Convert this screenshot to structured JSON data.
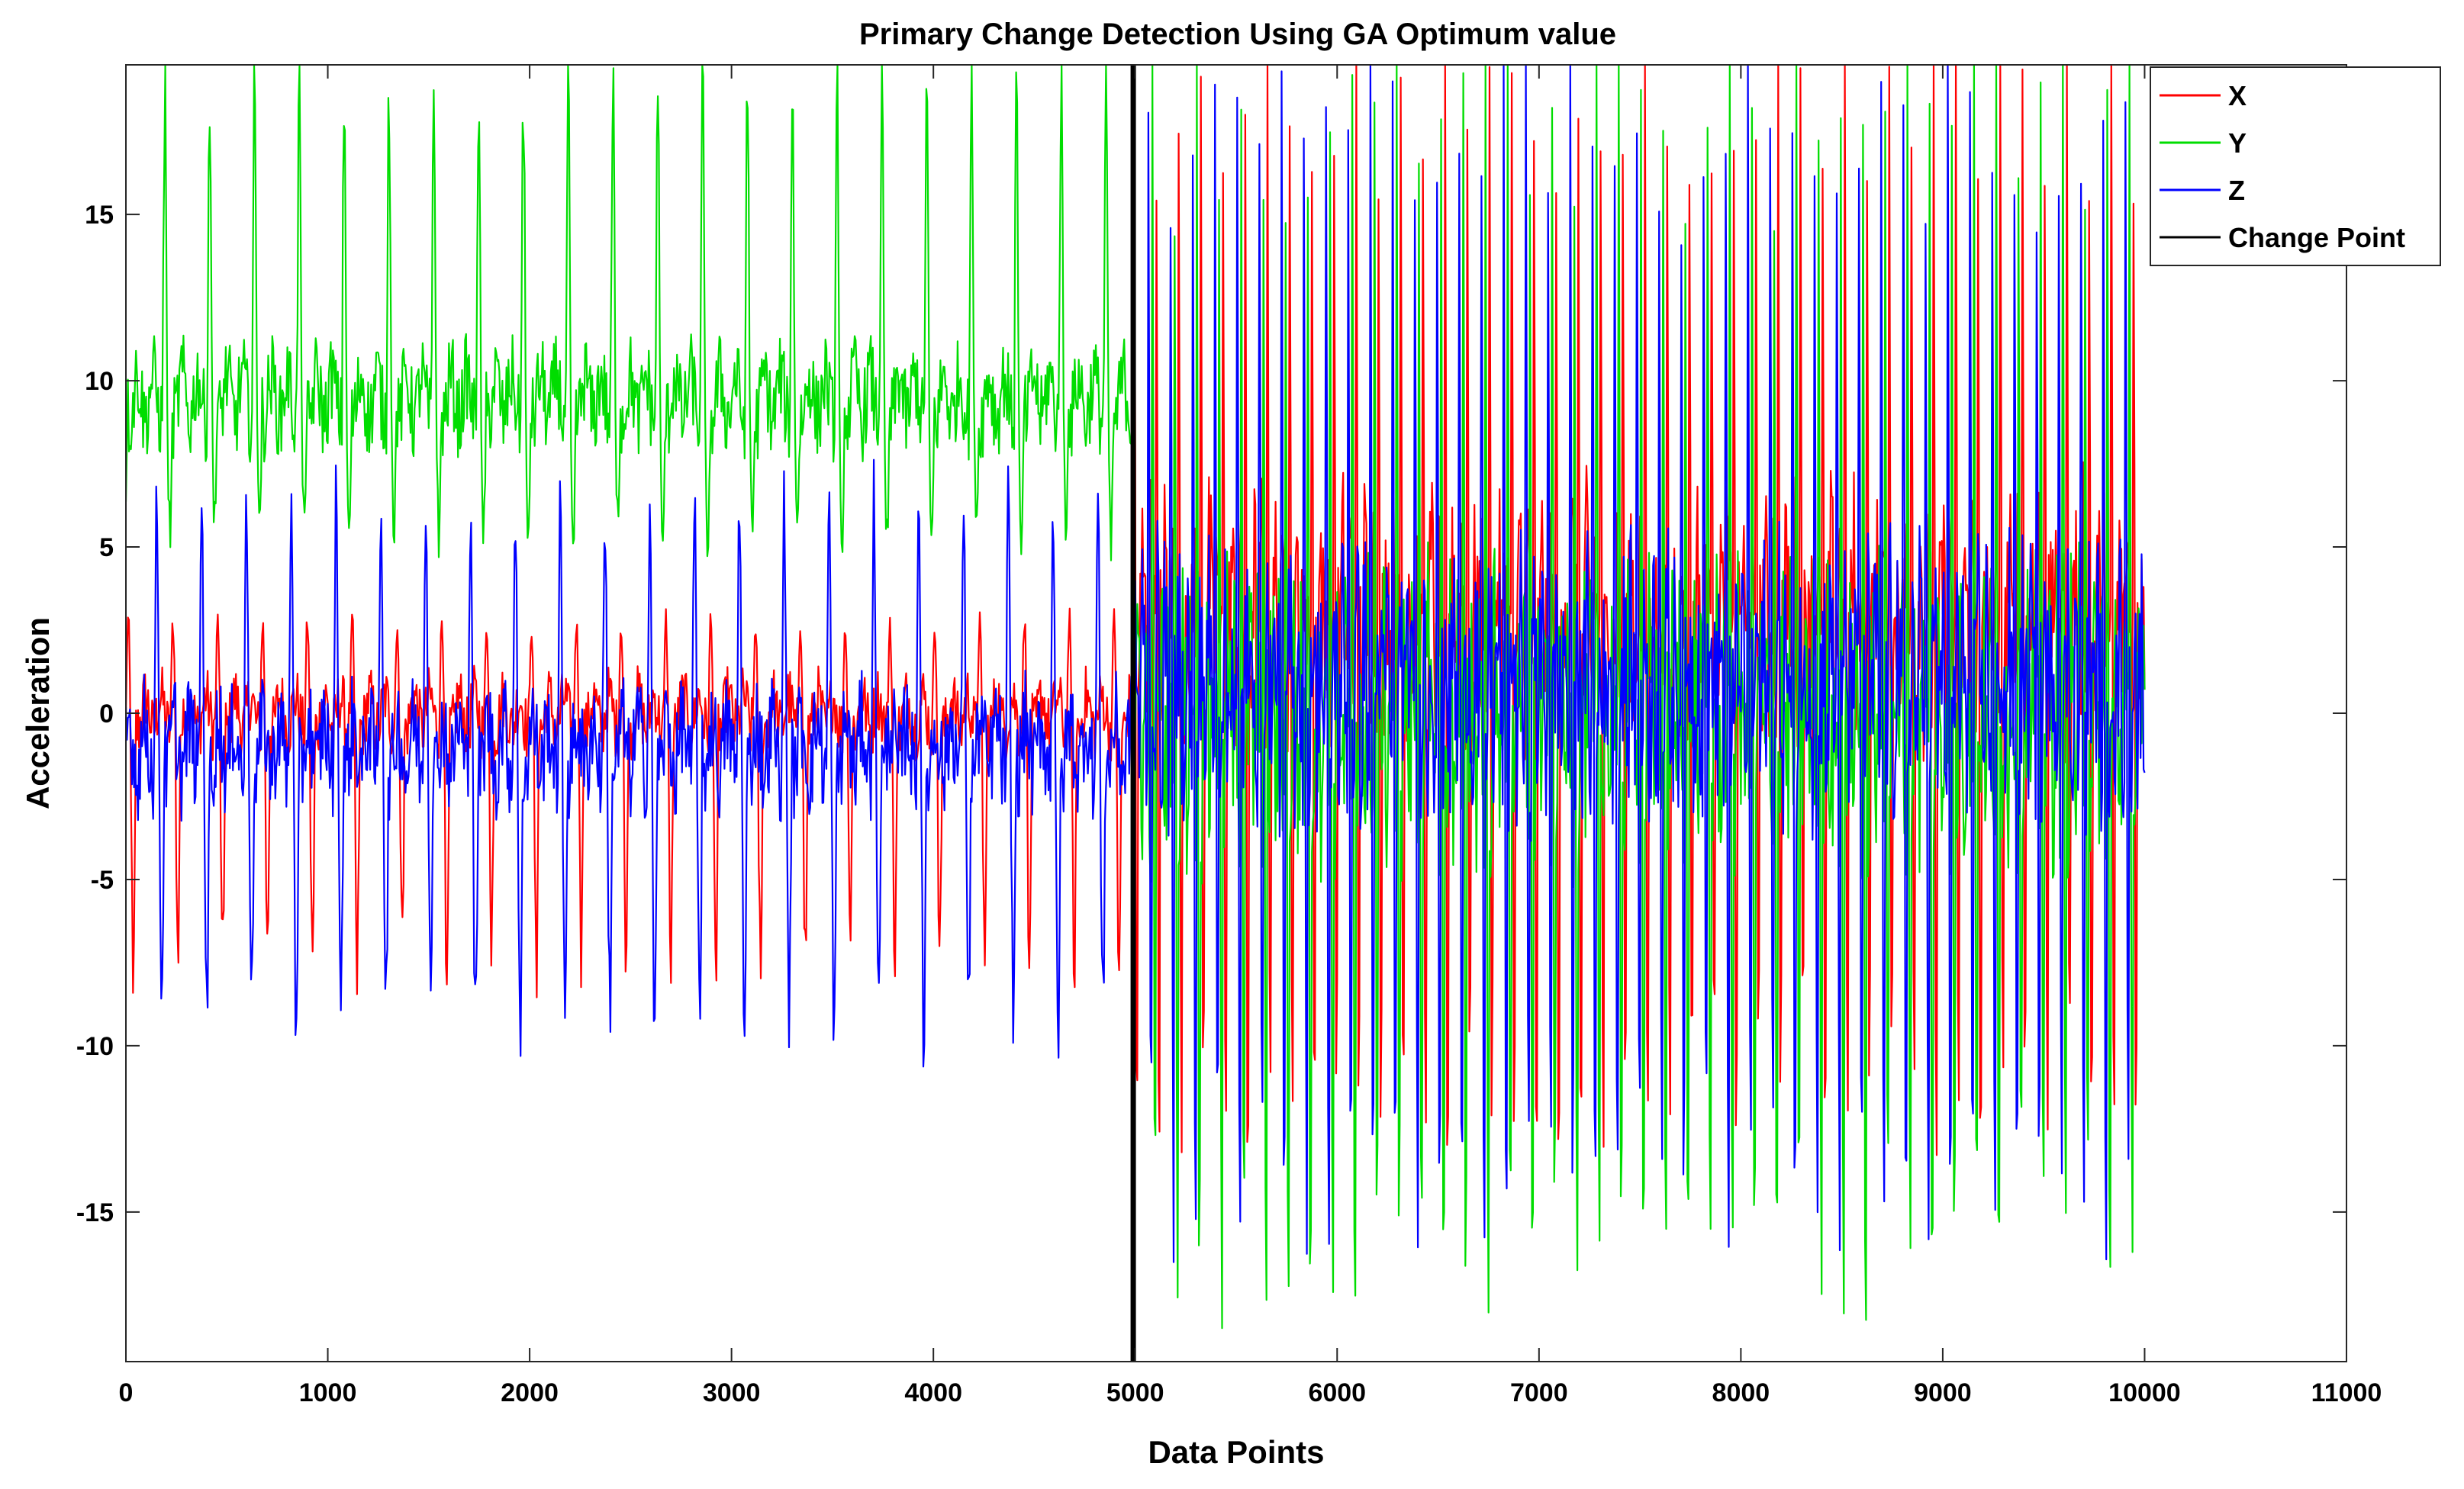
{
  "chart_data": {
    "type": "line",
    "title": "Primary Change Detection Using GA Optimum value",
    "xlabel": "Data Points",
    "ylabel": "Acceleration",
    "xlim": [
      0,
      11000
    ],
    "ylim": [
      -19.5,
      19.5
    ],
    "xticks": [
      0,
      1000,
      2000,
      3000,
      4000,
      5000,
      6000,
      7000,
      8000,
      9000,
      10000,
      11000
    ],
    "yticks": [
      -15,
      -10,
      -5,
      0,
      5,
      10,
      15
    ],
    "grid": false,
    "legend_position": "top-right",
    "series": [
      {
        "name": "X",
        "color": "#ff0000",
        "segments": [
          {
            "x_range": [
              0,
              4990
            ],
            "baseline": 0,
            "period": 222,
            "pos_peak": 3,
            "neg_peak": -8
          },
          {
            "x_range": [
              4990,
              10000
            ],
            "baseline": 3,
            "period": 110,
            "pos_peak": 19.5,
            "neg_peak": -15
          }
        ]
      },
      {
        "name": "Y",
        "color": "#00dd00",
        "segments": [
          {
            "x_range": [
              0,
              4990
            ],
            "baseline": 9.5,
            "period": 222,
            "pos_peak": 19.5,
            "neg_peak": 5
          },
          {
            "x_range": [
              4990,
              10000
            ],
            "baseline": 0,
            "period": 110,
            "pos_peak": 19.5,
            "neg_peak": -19.5
          }
        ]
      },
      {
        "name": "Z",
        "color": "#0000ff",
        "segments": [
          {
            "x_range": [
              0,
              4990
            ],
            "baseline": -1,
            "period": 222,
            "pos_peak": 7,
            "neg_peak": -10
          },
          {
            "x_range": [
              4990,
              10000
            ],
            "baseline": 1,
            "period": 110,
            "pos_peak": 19,
            "neg_peak": -17
          }
        ]
      }
    ],
    "change_point": {
      "name": "Change Point",
      "x": 4990,
      "color": "#000000"
    }
  }
}
